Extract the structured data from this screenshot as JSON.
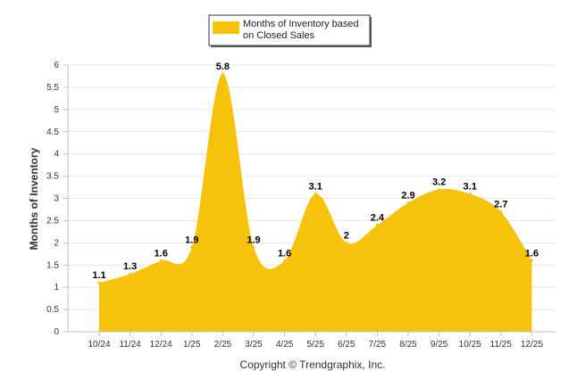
{
  "chart_data": {
    "type": "area",
    "categories": [
      "10/24",
      "11/24",
      "12/24",
      "1/25",
      "2/25",
      "3/25",
      "4/25",
      "5/25",
      "6/25",
      "7/25",
      "8/25",
      "9/25",
      "10/25",
      "11/25",
      "12/25"
    ],
    "series": [
      {
        "name": "Months of Inventory based on Closed Sales",
        "values": [
          1.1,
          1.3,
          1.6,
          1.9,
          5.8,
          1.9,
          1.6,
          3.1,
          2,
          2.4,
          2.9,
          3.2,
          3.1,
          2.7,
          1.6
        ],
        "data_labels": [
          "1.1",
          "1.3",
          "1.6",
          "1.9",
          "5.8",
          "1.9",
          "1.6",
          "3.1",
          "2",
          "2.4",
          "2.9",
          "3.2",
          "3.1",
          "2.7",
          "1.6"
        ]
      }
    ],
    "legend_lines": [
      "Months of Inventory based",
      "on Closed Sales"
    ],
    "ylabel": "Months of Inventory",
    "xlabel": "",
    "ylim": [
      0,
      6
    ],
    "yticks": [
      "0",
      "0.5",
      "1",
      "1.5",
      "2",
      "2.5",
      "3",
      "3.5",
      "4",
      "4.5",
      "5",
      "5.5",
      "6"
    ],
    "grid": true,
    "legend_position": "top-center",
    "colors": {
      "fill": "#F6C20B",
      "grid": "#E6E6E6",
      "axis": "#C0C0C0"
    }
  },
  "footer": {
    "copyright": "Copyright © Trendgraphix, Inc."
  }
}
